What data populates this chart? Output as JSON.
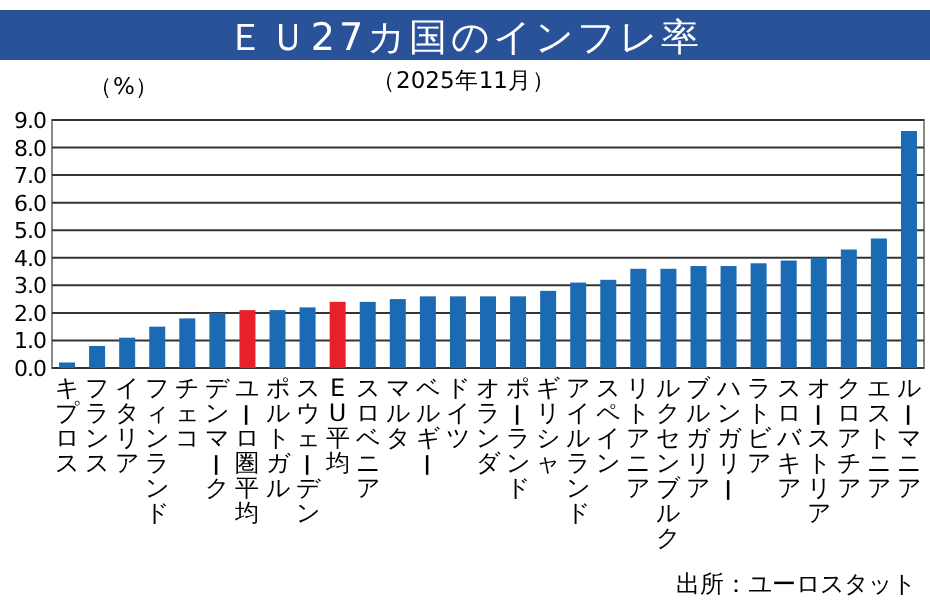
{
  "chart_data": {
    "type": "bar",
    "title": "ＥＵ27カ国のインフレ率",
    "subtitle": "（2025年11月）",
    "ylabel": "（%）",
    "annotations": [
      "出所：ユーロスタット"
    ],
    "categories": [
      "キプロス",
      "フランス",
      "イタリア",
      "フィンランド",
      "チェコ",
      "デンマーク",
      "ユーロ圏平均",
      "ポルトガル",
      "スウェーデン",
      "EU平均",
      "スロベニア",
      "マルタ",
      "ベルギー",
      "ドイツ",
      "オランダ",
      "ポーランド",
      "ギリシャ",
      "アイルランド",
      "スペイン",
      "リトアニア",
      "ルクセンブルク",
      "ブルガリア",
      "ハンガリー",
      "ラトビア",
      "スロバキア",
      "オーストリア",
      "クロアチア",
      "エストニア",
      "ルーマニア"
    ],
    "values": [
      0.2,
      0.8,
      1.1,
      1.5,
      1.8,
      2.0,
      2.1,
      2.1,
      2.2,
      2.4,
      2.4,
      2.5,
      2.6,
      2.6,
      2.6,
      2.6,
      2.8,
      3.1,
      3.2,
      3.6,
      3.6,
      3.7,
      3.7,
      3.8,
      3.9,
      4.0,
      4.3,
      4.7,
      8.6
    ],
    "colors": [
      "#1a6ab4",
      "#1a6ab4",
      "#1a6ab4",
      "#1a6ab4",
      "#1a6ab4",
      "#1a6ab4",
      "#e8202a",
      "#1a6ab4",
      "#1a6ab4",
      "#e8202a",
      "#1a6ab4",
      "#1a6ab4",
      "#1a6ab4",
      "#1a6ab4",
      "#1a6ab4",
      "#1a6ab4",
      "#1a6ab4",
      "#1a6ab4",
      "#1a6ab4",
      "#1a6ab4",
      "#1a6ab4",
      "#1a6ab4",
      "#1a6ab4",
      "#1a6ab4",
      "#1a6ab4",
      "#1a6ab4",
      "#1a6ab4",
      "#1a6ab4",
      "#1a6ab4"
    ],
    "ylim": [
      0,
      9
    ],
    "yticks": [
      {
        "value": 0,
        "label": "0.0"
      },
      {
        "value": 1,
        "label": "1.0"
      },
      {
        "value": 2,
        "label": "2.0"
      },
      {
        "value": 3,
        "label": "3.0"
      },
      {
        "value": 4,
        "label": "4.0"
      },
      {
        "value": 5,
        "label": "5.0"
      },
      {
        "value": 6,
        "label": "6.0"
      },
      {
        "value": 7,
        "label": "7.0"
      },
      {
        "value": 8,
        "label": "8.0"
      },
      {
        "value": 9,
        "label": "9.0"
      }
    ],
    "grid": "y",
    "legend": false
  }
}
